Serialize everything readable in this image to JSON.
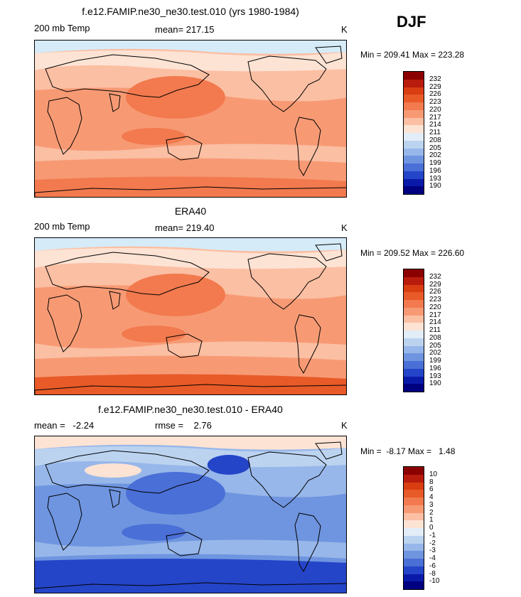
{
  "season": "DJF",
  "panels": [
    {
      "title": "f.e12.FAMIP.ne30_ne30.test.010 (yrs 1980-1984)",
      "left": "200 mb Temp",
      "center": "mean= 217.15",
      "right": "K",
      "minmax": "Min = 209.41 Max = 223.28",
      "colorbar": {
        "labels": [
          "232",
          "229",
          "226",
          "223",
          "220",
          "217",
          "214",
          "211",
          "208",
          "205",
          "202",
          "199",
          "196",
          "193",
          "190"
        ],
        "colors": [
          "#8b0000",
          "#b81c0c",
          "#d93d12",
          "#e85a28",
          "#f27a4e",
          "#f79a74",
          "#fbbfa3",
          "#fde3d4",
          "#e2edf8",
          "#bcd3f0",
          "#97b7ea",
          "#6f95e0",
          "#4a6fd6",
          "#2545c8",
          "#0a1aa8",
          "#000080"
        ]
      },
      "map_palette": [
        "#fde3d4",
        "#fbbfa3",
        "#f79a74",
        "#f27a4e",
        "#e85a28",
        "#d6ebf8"
      ]
    },
    {
      "title": "ERA40",
      "left": "200 mb Temp",
      "center": "mean= 219.40",
      "right": "K",
      "minmax": "Min = 209.52 Max = 226.60",
      "colorbar": {
        "labels": [
          "232",
          "229",
          "226",
          "223",
          "220",
          "217",
          "214",
          "211",
          "208",
          "205",
          "202",
          "199",
          "196",
          "193",
          "190"
        ],
        "colors": [
          "#8b0000",
          "#b81c0c",
          "#d93d12",
          "#e85a28",
          "#f27a4e",
          "#f79a74",
          "#fbbfa3",
          "#fde3d4",
          "#e2edf8",
          "#bcd3f0",
          "#97b7ea",
          "#6f95e0",
          "#4a6fd6",
          "#2545c8",
          "#0a1aa8",
          "#000080"
        ]
      },
      "map_palette": [
        "#fde3d4",
        "#fbbfa3",
        "#f79a74",
        "#f27a4e",
        "#e85a28",
        "#d6ebf8"
      ]
    },
    {
      "title": "f.e12.FAMIP.ne30_ne30.test.010 - ERA40",
      "left": "mean =   -2.24",
      "center": "rmse =    2.76",
      "right": "K",
      "minmax": "Min =  -8.17 Max =   1.48",
      "colorbar": {
        "labels": [
          "10",
          "8",
          "6",
          "4",
          "3",
          "2",
          "1",
          "0",
          "-1",
          "-2",
          "-3",
          "-4",
          "-6",
          "-8",
          "-10"
        ],
        "colors": [
          "#8b0000",
          "#b81c0c",
          "#d93d12",
          "#e85a28",
          "#f27a4e",
          "#f79a74",
          "#fbbfa3",
          "#fde3d4",
          "#e2edf8",
          "#bcd3f0",
          "#97b7ea",
          "#6f95e0",
          "#4a6fd6",
          "#2545c8",
          "#0a1aa8",
          "#000080"
        ]
      },
      "map_palette": [
        "#bcd3f0",
        "#97b7ea",
        "#6f95e0",
        "#4a6fd6",
        "#2545c8",
        "#fde3d4"
      ]
    }
  ]
}
